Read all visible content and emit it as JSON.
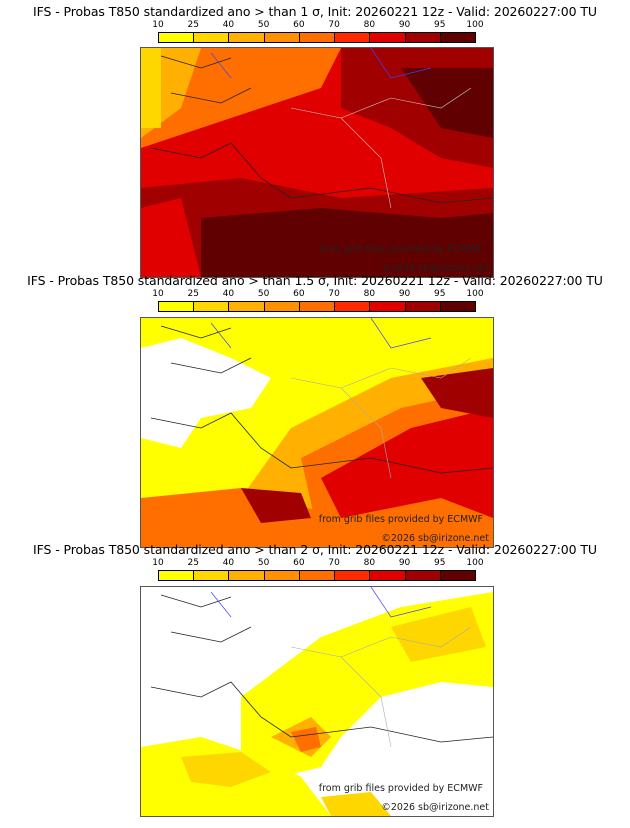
{
  "colorbar": {
    "levels": [
      "10",
      "25",
      "40",
      "50",
      "60",
      "70",
      "80",
      "90",
      "95",
      "100"
    ],
    "colors": [
      "#ffff00",
      "#ffd700",
      "#ffb000",
      "#ff9000",
      "#ff6f00",
      "#ff2a00",
      "#e00000",
      "#a00000",
      "#600000"
    ]
  },
  "panels": [
    {
      "title": "IFS - Probas T850  standardized ano > than 1 σ, Init: 20260221 12z - Valid: 20260227:00 TU",
      "credit_source": "from grib files provided by ECMWF",
      "credit_copyright": "©2026 sb@irizone.net"
    },
    {
      "title": "IFS - Probas T850  standardized ano > than 1.5 σ, Init: 20260221 12z - Valid: 20260227:00 TU",
      "credit_source": "from grib files provided by ECMWF",
      "credit_copyright": "©2026 sb@irizone.net"
    },
    {
      "title": "IFS - Probas T850  standardized ano > than 2 σ, Init: 20260221 12z - Valid: 20260227:00 TU",
      "credit_source": "from grib files provided by ECMWF",
      "credit_copyright": "©2026 sb@irizone.net"
    }
  ]
}
